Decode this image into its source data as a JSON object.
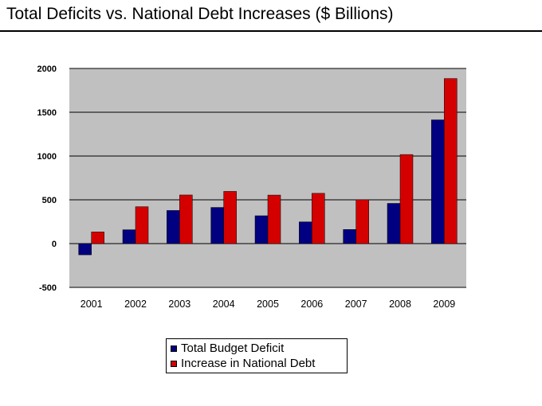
{
  "title": "Total Deficits vs. National Debt Increases ($ Billions)",
  "colors": {
    "plot_background": "#c0c0c0",
    "gridline": "#000000",
    "deficit_series": "#000080",
    "debt_series": "#d40000"
  },
  "chart_data": {
    "type": "bar",
    "title": "Total Deficits vs. National Debt Increases ($ Billions)",
    "xlabel": "",
    "ylabel": "",
    "categories": [
      "2001",
      "2002",
      "2003",
      "2004",
      "2005",
      "2006",
      "2007",
      "2008",
      "2009"
    ],
    "series": [
      {
        "name": "Total Budget Deficit",
        "color": "#000080",
        "values": [
          -128,
          158,
          378,
          413,
          318,
          248,
          161,
          459,
          1413
        ]
      },
      {
        "name": "Increase in National Debt",
        "color": "#d40000",
        "values": [
          133,
          421,
          555,
          596,
          554,
          574,
          501,
          1017,
          1885
        ]
      }
    ],
    "ylim": [
      -500,
      2000
    ],
    "yticks": [
      "2000",
      "1500",
      "1000",
      "500",
      "0",
      "-500"
    ],
    "ytick_values": [
      2000,
      1500,
      1000,
      500,
      0,
      -500
    ],
    "grid": true,
    "legend_position": "bottom"
  },
  "legend": {
    "items": [
      {
        "label": "Total Budget Deficit"
      },
      {
        "label": "Increase in National Debt"
      }
    ]
  }
}
